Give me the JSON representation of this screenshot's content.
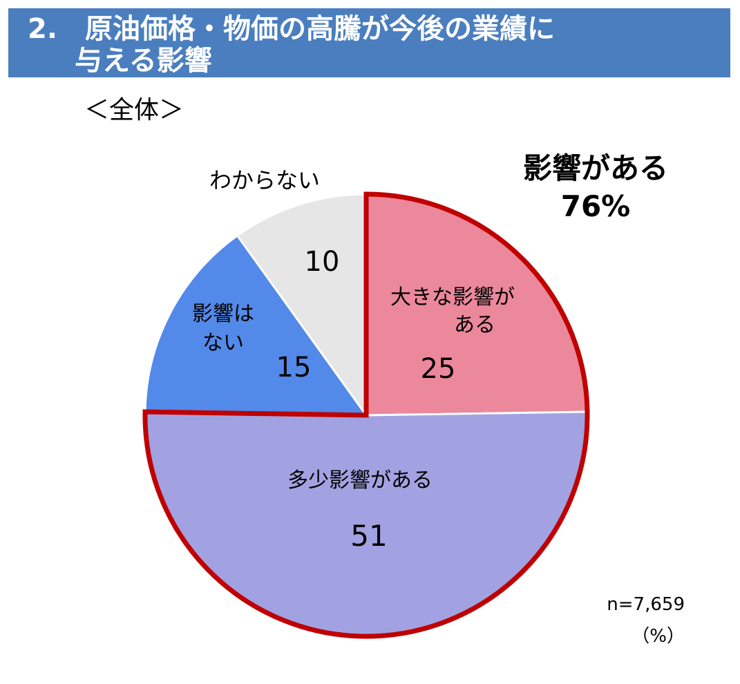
{
  "header": {
    "title_line1": "2.　原油価格・物価の高騰が今後の業績に",
    "title_line2": "与える影響"
  },
  "subtitle": "＜全体＞",
  "colors": {
    "header_bg": "#4a7ebf",
    "highlight_border": "#c00000",
    "highlight_text": "#c00000"
  },
  "chart_data": {
    "type": "pie",
    "slices": [
      {
        "label_lines": [
          "大きな影響が",
          "ある"
        ],
        "value": 25,
        "value_label": "25",
        "color": "#eb889c",
        "text_color": "#000000"
      },
      {
        "label_lines": [
          "多少影響がある"
        ],
        "value": 51,
        "value_label": "51",
        "color": "#a2a2e2",
        "text_color": "#000000"
      },
      {
        "label_lines": [
          "影響は",
          "ない"
        ],
        "value": 15,
        "value_label": "15",
        "color": "#5389e8",
        "text_color": "#ffffff"
      },
      {
        "label_lines": [
          "わからない"
        ],
        "value": 10,
        "value_label": "10",
        "color": "#e6e6e6",
        "text_color": "#000000"
      }
    ],
    "start": "12 o'clock",
    "direction": "clockwise",
    "highlight": {
      "slices": [
        0,
        1
      ],
      "label_lines": [
        "影響がある",
        "76%"
      ]
    }
  },
  "notes": {
    "n": "n=7,659",
    "unit": "（%）"
  }
}
